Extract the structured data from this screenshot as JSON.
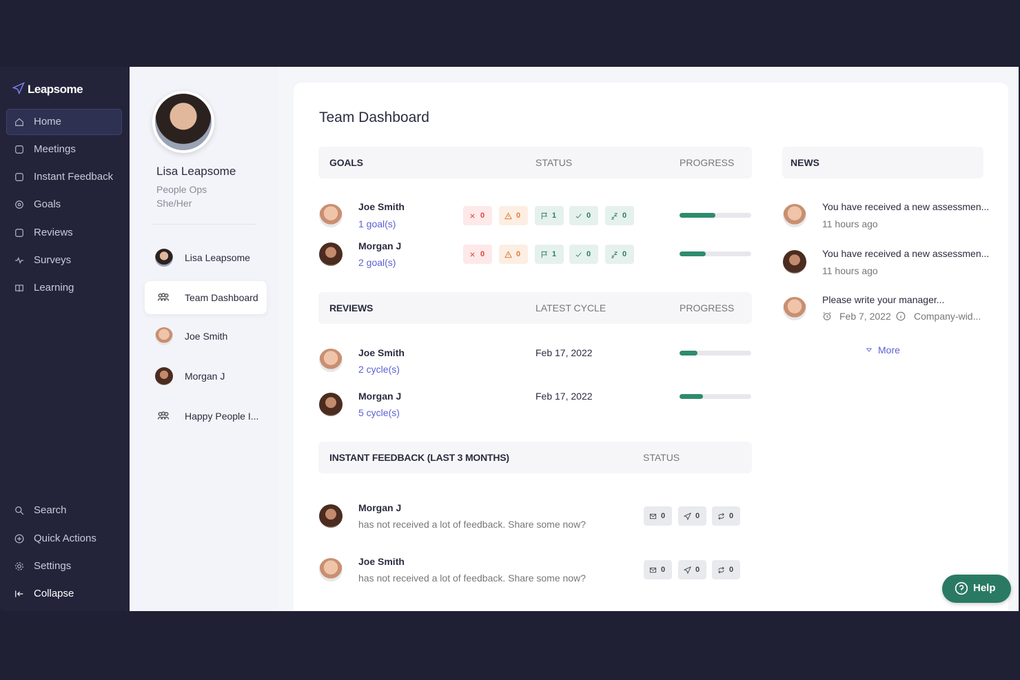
{
  "sidebar": {
    "brand": "Leapsome",
    "nav": [
      "Home",
      "Meetings",
      "Instant Feedback",
      "Goals",
      "Reviews",
      "Surveys",
      "Learning"
    ],
    "bottom": [
      "Search",
      "Quick Actions",
      "Settings",
      "Collapse"
    ]
  },
  "profile": {
    "name": "Lisa Leapsome",
    "role": "People Ops",
    "pronouns": "She/Her",
    "menu": [
      "Lisa Leapsome",
      "Team Dashboard",
      "Joe Smith",
      "Morgan J",
      "Happy People I..."
    ]
  },
  "dashboard": {
    "title": "Team Dashboard",
    "progress_range": [
      0,
      100
    ],
    "goals": {
      "headers": [
        "GOALS",
        "STATUS",
        "PROGRESS"
      ],
      "rows": [
        {
          "name": "Joe Smith",
          "link": "1 goal(s)",
          "status": [
            0,
            0,
            1,
            0,
            0
          ],
          "progress": 50
        },
        {
          "name": "Morgan J",
          "link": "2 goal(s)",
          "status": [
            0,
            0,
            1,
            0,
            0
          ],
          "progress": 37
        }
      ]
    },
    "reviews": {
      "headers": [
        "REVIEWS",
        "LATEST CYCLE",
        "PROGRESS"
      ],
      "rows": [
        {
          "name": "Joe Smith",
          "link": "2 cycle(s)",
          "cycle": "Feb 17, 2022",
          "progress": 25
        },
        {
          "name": "Morgan J",
          "link": "5 cycle(s)",
          "cycle": "Feb 17, 2022",
          "progress": 33
        }
      ]
    },
    "feedback": {
      "headers": [
        "INSTANT FEEDBACK (LAST 3 MONTHS)",
        "STATUS"
      ],
      "rows": [
        {
          "name": "Morgan J",
          "text": "has not received a lot of feedback. Share some now?",
          "status": [
            0,
            0,
            0
          ]
        },
        {
          "name": "Joe Smith",
          "text": "has not received a lot of feedback. Share some now?",
          "status": [
            0,
            0,
            0
          ]
        }
      ]
    },
    "news": {
      "header": "NEWS",
      "items": [
        {
          "text": "You have received a new assessmen...",
          "time": "11 hours ago"
        },
        {
          "text": "You have received a new assessmen...",
          "time": "11 hours ago"
        },
        {
          "text": "Please write your manager...",
          "date": "Feb 7, 2022",
          "scope": "Company-wid..."
        }
      ],
      "more": "More"
    },
    "help": "Help"
  }
}
